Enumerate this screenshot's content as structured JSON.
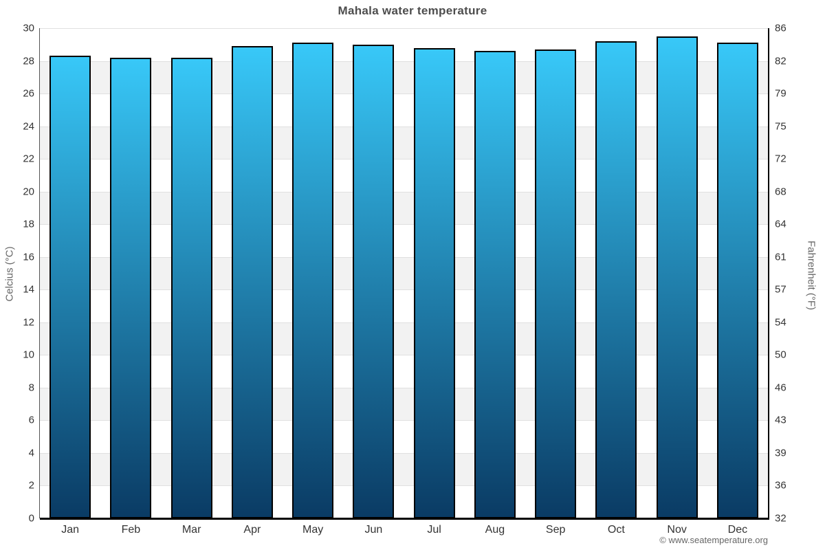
{
  "page": {
    "title": "Mahala water temperature",
    "footer": "© www.seatemperature.org"
  },
  "chart_data": {
    "type": "bar",
    "title": "Mahala water temperature",
    "categories": [
      "Jan",
      "Feb",
      "Mar",
      "Apr",
      "May",
      "Jun",
      "Jul",
      "Aug",
      "Sep",
      "Oct",
      "Nov",
      "Dec"
    ],
    "values": [
      28.3,
      28.2,
      28.2,
      28.9,
      29.1,
      29.0,
      28.8,
      28.6,
      28.7,
      29.2,
      29.5,
      29.1
    ],
    "unit": "°C",
    "xlabel": "",
    "ylabel_left": "Celcius (°C)",
    "ylabel_right": "Fahrenheit (°F)",
    "ylim": [
      0,
      30
    ],
    "y_ticks_celsius": [
      0,
      2,
      4,
      6,
      8,
      10,
      12,
      14,
      16,
      18,
      20,
      22,
      24,
      26,
      28,
      30
    ],
    "y_ticks_fahrenheit": [
      32,
      36,
      39,
      43,
      46,
      50,
      54,
      57,
      61,
      64,
      68,
      72,
      75,
      79,
      82,
      86
    ],
    "grid": true,
    "legend_position": "none",
    "colors": {
      "bar_gradient_top": "#38c8f8",
      "bar_gradient_bottom": "#0a3b64",
      "bar_border": "#000000",
      "band_even": "#ffffff",
      "band_odd": "#f2f2f2",
      "gridline": "#e0e0e0",
      "title_text": "#4d4d4d",
      "tick_text": "#333333",
      "axis_title_text": "#666666",
      "footer_text": "#666666"
    }
  }
}
